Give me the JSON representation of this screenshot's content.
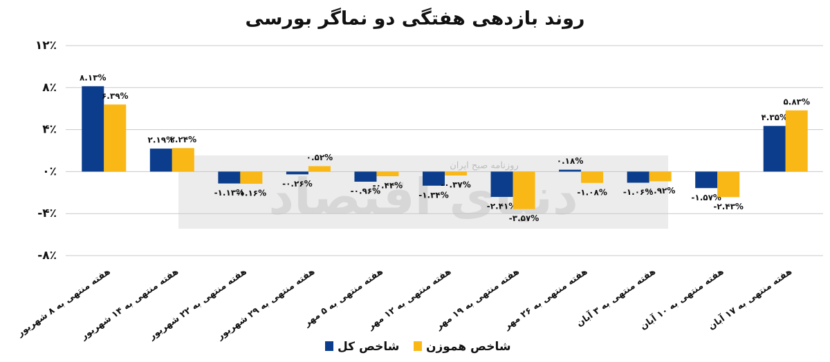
{
  "chart_data": {
    "type": "bar",
    "title": "روند بازدهی هفتگی دو نماگر بورسی",
    "categories": [
      "هفته منتهی به ۸ شهریور",
      "هفته منتهی به ۱۴ شهریور",
      "هفته منتهی به ۲۲ شهریور",
      "هفته منتهی به ۲۹ شهریور",
      "هفته منتهی به ۵ مهر",
      "هفته منتهی به ۱۲ مهر",
      "هفته منتهی به ۱۹ مهر",
      "هفته منتهی به ۲۶ مهر",
      "هفته منتهی به ۳ آبان",
      "هفته منتهی به ۱۰ آبان",
      "هفته منتهی به ۱۷ آبان"
    ],
    "series": [
      {
        "name": "شاخص کل",
        "color": "#0b3d8c",
        "values": [
          8.13,
          2.19,
          -1.13,
          -0.26,
          -0.96,
          -1.34,
          -2.41,
          0.18,
          -1.06,
          -1.57,
          4.35
        ],
        "value_labels": [
          "۸.۱۳%",
          "۲.۱۹%",
          "-۱.۱۳%",
          "-۰.۲۶%",
          "-۰.۹۶%",
          "-۱.۳۴%",
          "-۲.۴۱%",
          "۰.۱۸%",
          "-۱.۰۶%",
          "-۱.۵۷%",
          "۴.۳۵%"
        ]
      },
      {
        "name": "شاخص هموزن",
        "color": "#f9b816",
        "values": [
          6.39,
          2.24,
          -1.16,
          0.52,
          -0.44,
          -0.37,
          -3.57,
          -1.08,
          -0.92,
          -2.43,
          5.83
        ],
        "value_labels": [
          "۶.۳۹%",
          "۲.۲۴%",
          "-۱.۱۶%",
          "۰.۵۲%",
          "-۰.۴۴%",
          "-۰.۳۷%",
          "-۳.۵۷%",
          "-۱.۰۸%",
          "-۰.۹۲%",
          "-۲.۴۳%",
          "۵.۸۳%"
        ]
      }
    ],
    "ylim": [
      -8,
      12
    ],
    "yticks": [
      {
        "value": -8,
        "label": "-۸٪"
      },
      {
        "value": -4,
        "label": "-۴٪"
      },
      {
        "value": 0,
        "label": "۰٪"
      },
      {
        "value": 4,
        "label": "۴٪"
      },
      {
        "value": 8,
        "label": "۸٪"
      },
      {
        "value": 12,
        "label": "۱۲٪"
      }
    ],
    "grid": true,
    "legend": "bottom",
    "watermark": [
      "دنیای اقتصاد",
      "روزنامه صبح ایران"
    ]
  }
}
